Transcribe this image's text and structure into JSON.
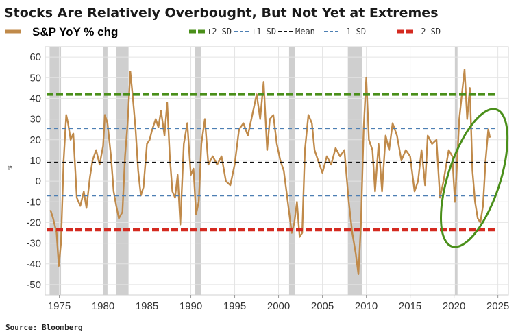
{
  "chart_data": {
    "type": "line",
    "title": "Stocks Are Relatively Overbought, But Not Yet at Extremes",
    "ylabel": "%",
    "source": "Source: Bloomberg",
    "xlim": [
      1973.4,
      2026.2
    ],
    "ylim": [
      -55,
      65
    ],
    "x_ticks": [
      1975,
      1980,
      1985,
      1990,
      1995,
      2000,
      2005,
      2010,
      2015,
      2020,
      2025
    ],
    "y_ticks": [
      60,
      50,
      40,
      30,
      20,
      10,
      0,
      -10,
      -20,
      -30,
      -40,
      -50
    ],
    "grid": true,
    "legend_position": "top",
    "legend": [
      {
        "key": "series",
        "label": "S&P YoY % chg"
      },
      {
        "key": "p2",
        "label": "+2 SD"
      },
      {
        "key": "p1",
        "label": "+1 SD"
      },
      {
        "key": "mean",
        "label": "Mean"
      },
      {
        "key": "m1",
        "label": "-1 SD"
      },
      {
        "key": "m2",
        "label": "-2 SD"
      }
    ],
    "reference_lines": [
      {
        "key": "p2",
        "name": "+2 SD",
        "value": 42,
        "color": "#4a8f1a",
        "style": "dashed-thick"
      },
      {
        "key": "p1",
        "name": "+1 SD",
        "value": 25.5,
        "color": "#4d7fb3",
        "style": "dashed"
      },
      {
        "key": "mean",
        "name": "Mean",
        "value": 9,
        "color": "#111111",
        "style": "dashed"
      },
      {
        "key": "m1",
        "name": "-1 SD",
        "value": -7,
        "color": "#4d7fb3",
        "style": "dashed"
      },
      {
        "key": "m2",
        "name": "-2 SD",
        "value": -23.5,
        "color": "#d42a20",
        "style": "dashed-thick"
      }
    ],
    "recession_bands": [
      [
        1973.9,
        1975.2
      ],
      [
        1980.0,
        1980.5
      ],
      [
        1981.5,
        1982.9
      ],
      [
        1990.5,
        1991.2
      ],
      [
        2001.2,
        2001.9
      ],
      [
        2007.9,
        2009.5
      ],
      [
        2020.1,
        2020.4
      ]
    ],
    "series": [
      {
        "name": "S&P YoY % chg",
        "color": "#c08a4a",
        "x": [
          1974.0,
          1974.3,
          1974.7,
          1974.95,
          1975.2,
          1975.5,
          1975.8,
          1976.0,
          1976.3,
          1976.6,
          1977.0,
          1977.4,
          1977.8,
          1978.1,
          1978.5,
          1978.8,
          1979.2,
          1979.6,
          1980.0,
          1980.2,
          1980.5,
          1980.9,
          1981.2,
          1981.5,
          1981.8,
          1982.2,
          1982.5,
          1982.8,
          1983.1,
          1983.4,
          1983.7,
          1984.0,
          1984.3,
          1984.6,
          1985.0,
          1985.3,
          1985.6,
          1986.0,
          1986.3,
          1986.6,
          1987.0,
          1987.3,
          1987.6,
          1987.9,
          1988.2,
          1988.5,
          1988.8,
          1989.2,
          1989.6,
          1990.0,
          1990.3,
          1990.6,
          1990.9,
          1991.2,
          1991.6,
          1992.0,
          1992.5,
          1993.0,
          1993.5,
          1994.0,
          1994.5,
          1995.0,
          1995.5,
          1996.0,
          1996.5,
          1997.0,
          1997.5,
          1997.9,
          1998.3,
          1998.7,
          1999.0,
          1999.4,
          1999.8,
          2000.2,
          2000.6,
          2000.9,
          2001.2,
          2001.5,
          2001.8,
          2002.1,
          2002.4,
          2002.7,
          2003.0,
          2003.4,
          2003.8,
          2004.1,
          2004.5,
          2005.0,
          2005.5,
          2006.0,
          2006.5,
          2007.0,
          2007.5,
          2008.0,
          2008.4,
          2008.8,
          2009.1,
          2009.4,
          2009.7,
          2010.0,
          2010.3,
          2010.7,
          2011.0,
          2011.4,
          2011.8,
          2012.2,
          2012.6,
          2013.0,
          2013.5,
          2014.0,
          2014.5,
          2015.0,
          2015.5,
          2015.9,
          2016.3,
          2016.7,
          2017.0,
          2017.5,
          2018.0,
          2018.4,
          2018.8,
          2019.0,
          2019.4,
          2019.8,
          2020.1,
          2020.3,
          2020.6,
          2020.9,
          2021.2,
          2021.5,
          2021.8,
          2022.1,
          2022.4,
          2022.7,
          2023.0,
          2023.3,
          2023.6,
          2023.9,
          2024.1
        ],
        "y": [
          -14,
          -18,
          -25,
          -41,
          -30,
          10,
          32,
          28,
          20,
          23,
          -8,
          -12,
          -5,
          -13,
          2,
          10,
          15,
          8,
          17,
          32,
          28,
          12,
          -5,
          -12,
          -18,
          -15,
          12,
          28,
          53,
          40,
          25,
          5,
          -7,
          -3,
          18,
          20,
          25,
          30,
          26,
          34,
          22,
          38,
          12,
          -5,
          -8,
          3,
          -21,
          18,
          28,
          3,
          6,
          -16,
          -10,
          18,
          30,
          8,
          12,
          8,
          12,
          0,
          -2,
          8,
          25,
          28,
          22,
          32,
          42,
          30,
          48,
          15,
          30,
          32,
          18,
          10,
          5,
          -5,
          -15,
          -25,
          -20,
          -10,
          -27,
          -25,
          15,
          32,
          28,
          15,
          10,
          4,
          12,
          8,
          16,
          12,
          15,
          -10,
          -25,
          -35,
          -45,
          -20,
          25,
          50,
          20,
          15,
          -5,
          18,
          -5,
          22,
          15,
          28,
          22,
          10,
          15,
          12,
          -5,
          0,
          15,
          -2,
          22,
          18,
          20,
          -8,
          0,
          5,
          15,
          12,
          -10,
          5,
          30,
          42,
          54,
          30,
          45,
          5,
          -10,
          -18,
          -20,
          -12,
          10,
          25,
          21
        ]
      }
    ],
    "annotations": [
      {
        "type": "ellipse",
        "color": "#4a8f1a",
        "cx_year": 2022.3,
        "cy_value": 1.5
      }
    ]
  }
}
